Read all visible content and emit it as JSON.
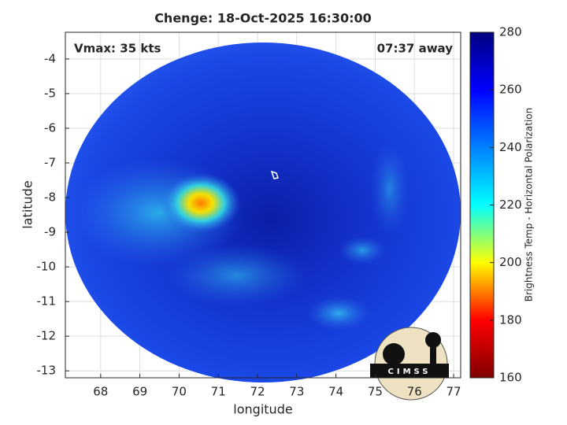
{
  "chart_data": {
    "type": "image",
    "title": "Chenge: 18-Oct-2025 16:30:00",
    "annotations": [
      "Vmax: 35 kts",
      "07:37 away"
    ],
    "xlabel": "longitude",
    "ylabel": "latitude",
    "xlim": [
      67.1,
      77.18
    ],
    "xticks": [
      68,
      69,
      70,
      71,
      72,
      73,
      74,
      75,
      76,
      77
    ],
    "ylim": [
      -13.2,
      -3.23
    ],
    "yticks": [
      -4,
      -5,
      -6,
      -7,
      -8,
      -9,
      -10,
      -11,
      -12,
      -13
    ],
    "grid": true,
    "colorbar": {
      "label": "Brightness Temp - Horizontal Polarization",
      "lim": [
        160,
        280
      ],
      "ticks": [
        160,
        180,
        200,
        220,
        240,
        260,
        280
      ],
      "colormap": [
        "#7f0000",
        "#ff0000",
        "#ffff00",
        "#00ffff",
        "#0080ff",
        "#0000ff",
        "#00007f"
      ]
    },
    "logo": "CIMSS"
  }
}
